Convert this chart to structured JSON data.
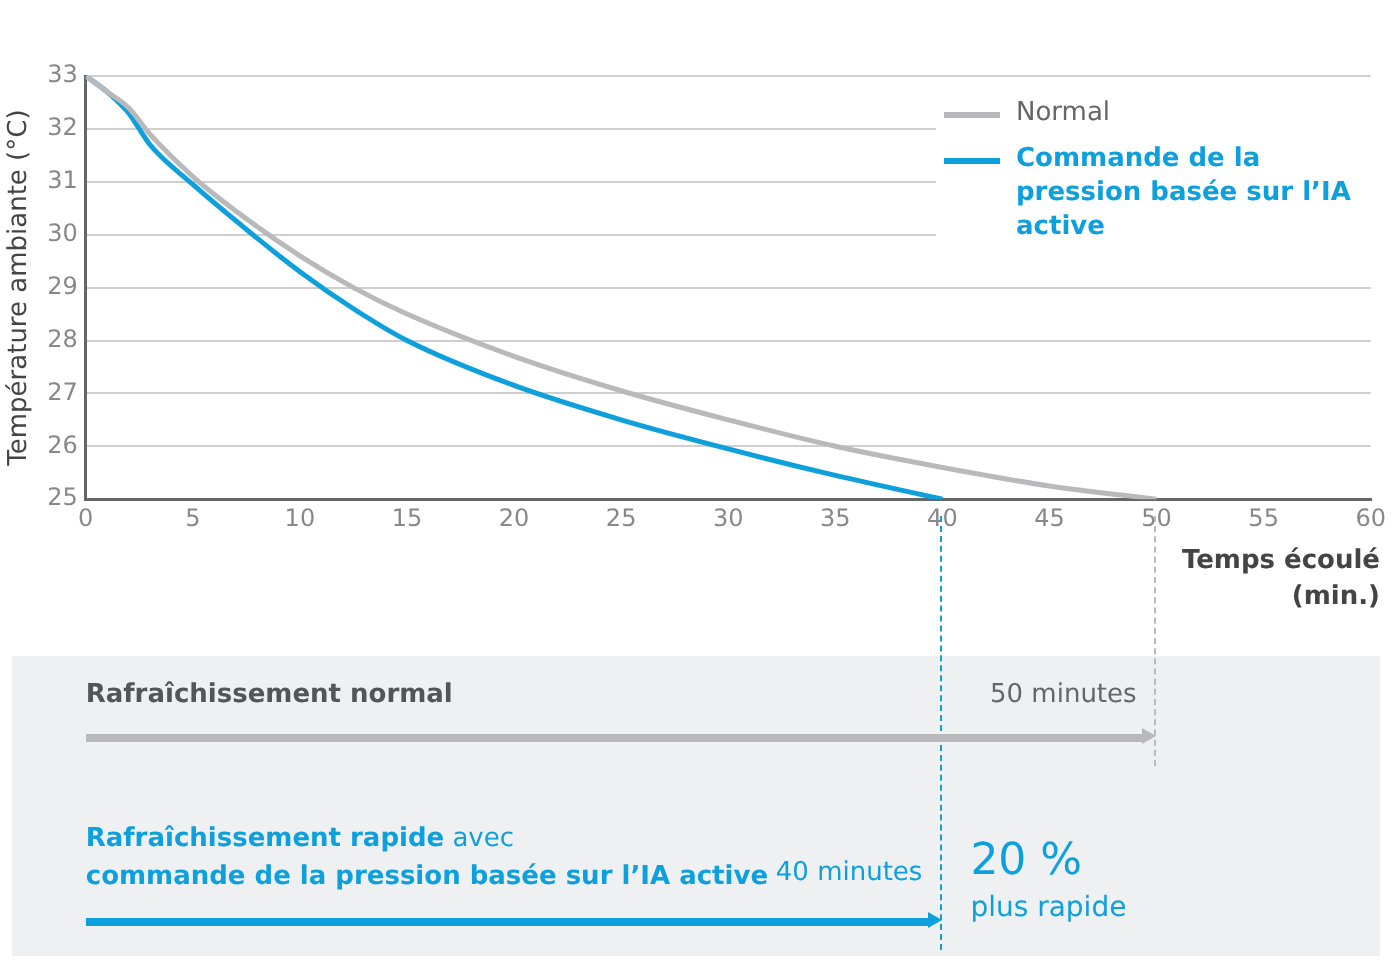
{
  "chart_data": {
    "type": "line",
    "ylabel": "Température ambiante (°C)",
    "xlabel": "Temps écoulé (min.)",
    "xlim": [
      0,
      60
    ],
    "xticks": [
      0,
      5,
      10,
      15,
      20,
      25,
      30,
      35,
      40,
      45,
      50,
      55,
      60
    ],
    "ylim": [
      25,
      33
    ],
    "yticks": [
      25,
      26,
      27,
      28,
      29,
      30,
      31,
      32,
      33
    ],
    "grid": "y",
    "legend": "top right",
    "marker": "none",
    "line_style": "solid",
    "series": [
      {
        "name": "Normal",
        "color": "#b9b9bb",
        "x": [
          0,
          1,
          2,
          3,
          5,
          7.5,
          10,
          12.5,
          15,
          20,
          25,
          30,
          35,
          40,
          45,
          50
        ],
        "values": [
          33,
          32.7,
          32.4,
          31.9,
          31.1,
          30.3,
          29.6,
          29.0,
          28.5,
          27.7,
          27.05,
          26.5,
          26.0,
          25.6,
          25.25,
          25
        ]
      },
      {
        "name": "Commande de la pression basée sur l’IA active",
        "color": "#0ea0dc",
        "x": [
          0,
          1,
          2,
          2.5,
          3,
          5,
          7.5,
          10,
          12.5,
          15,
          20,
          25,
          30,
          35,
          40
        ],
        "values": [
          33,
          32.7,
          32.3,
          32.0,
          31.7,
          30.95,
          30.1,
          29.3,
          28.6,
          28.0,
          27.15,
          26.5,
          25.95,
          25.45,
          25
        ]
      }
    ],
    "annotations": [
      "Rafraîchissement normal",
      "50 minutes",
      "Rafraîchissement rapide",
      "avec",
      "commande de la pression basée sur l’IA active",
      "40 minutes",
      "20 %",
      "plus rapide"
    ]
  }
}
